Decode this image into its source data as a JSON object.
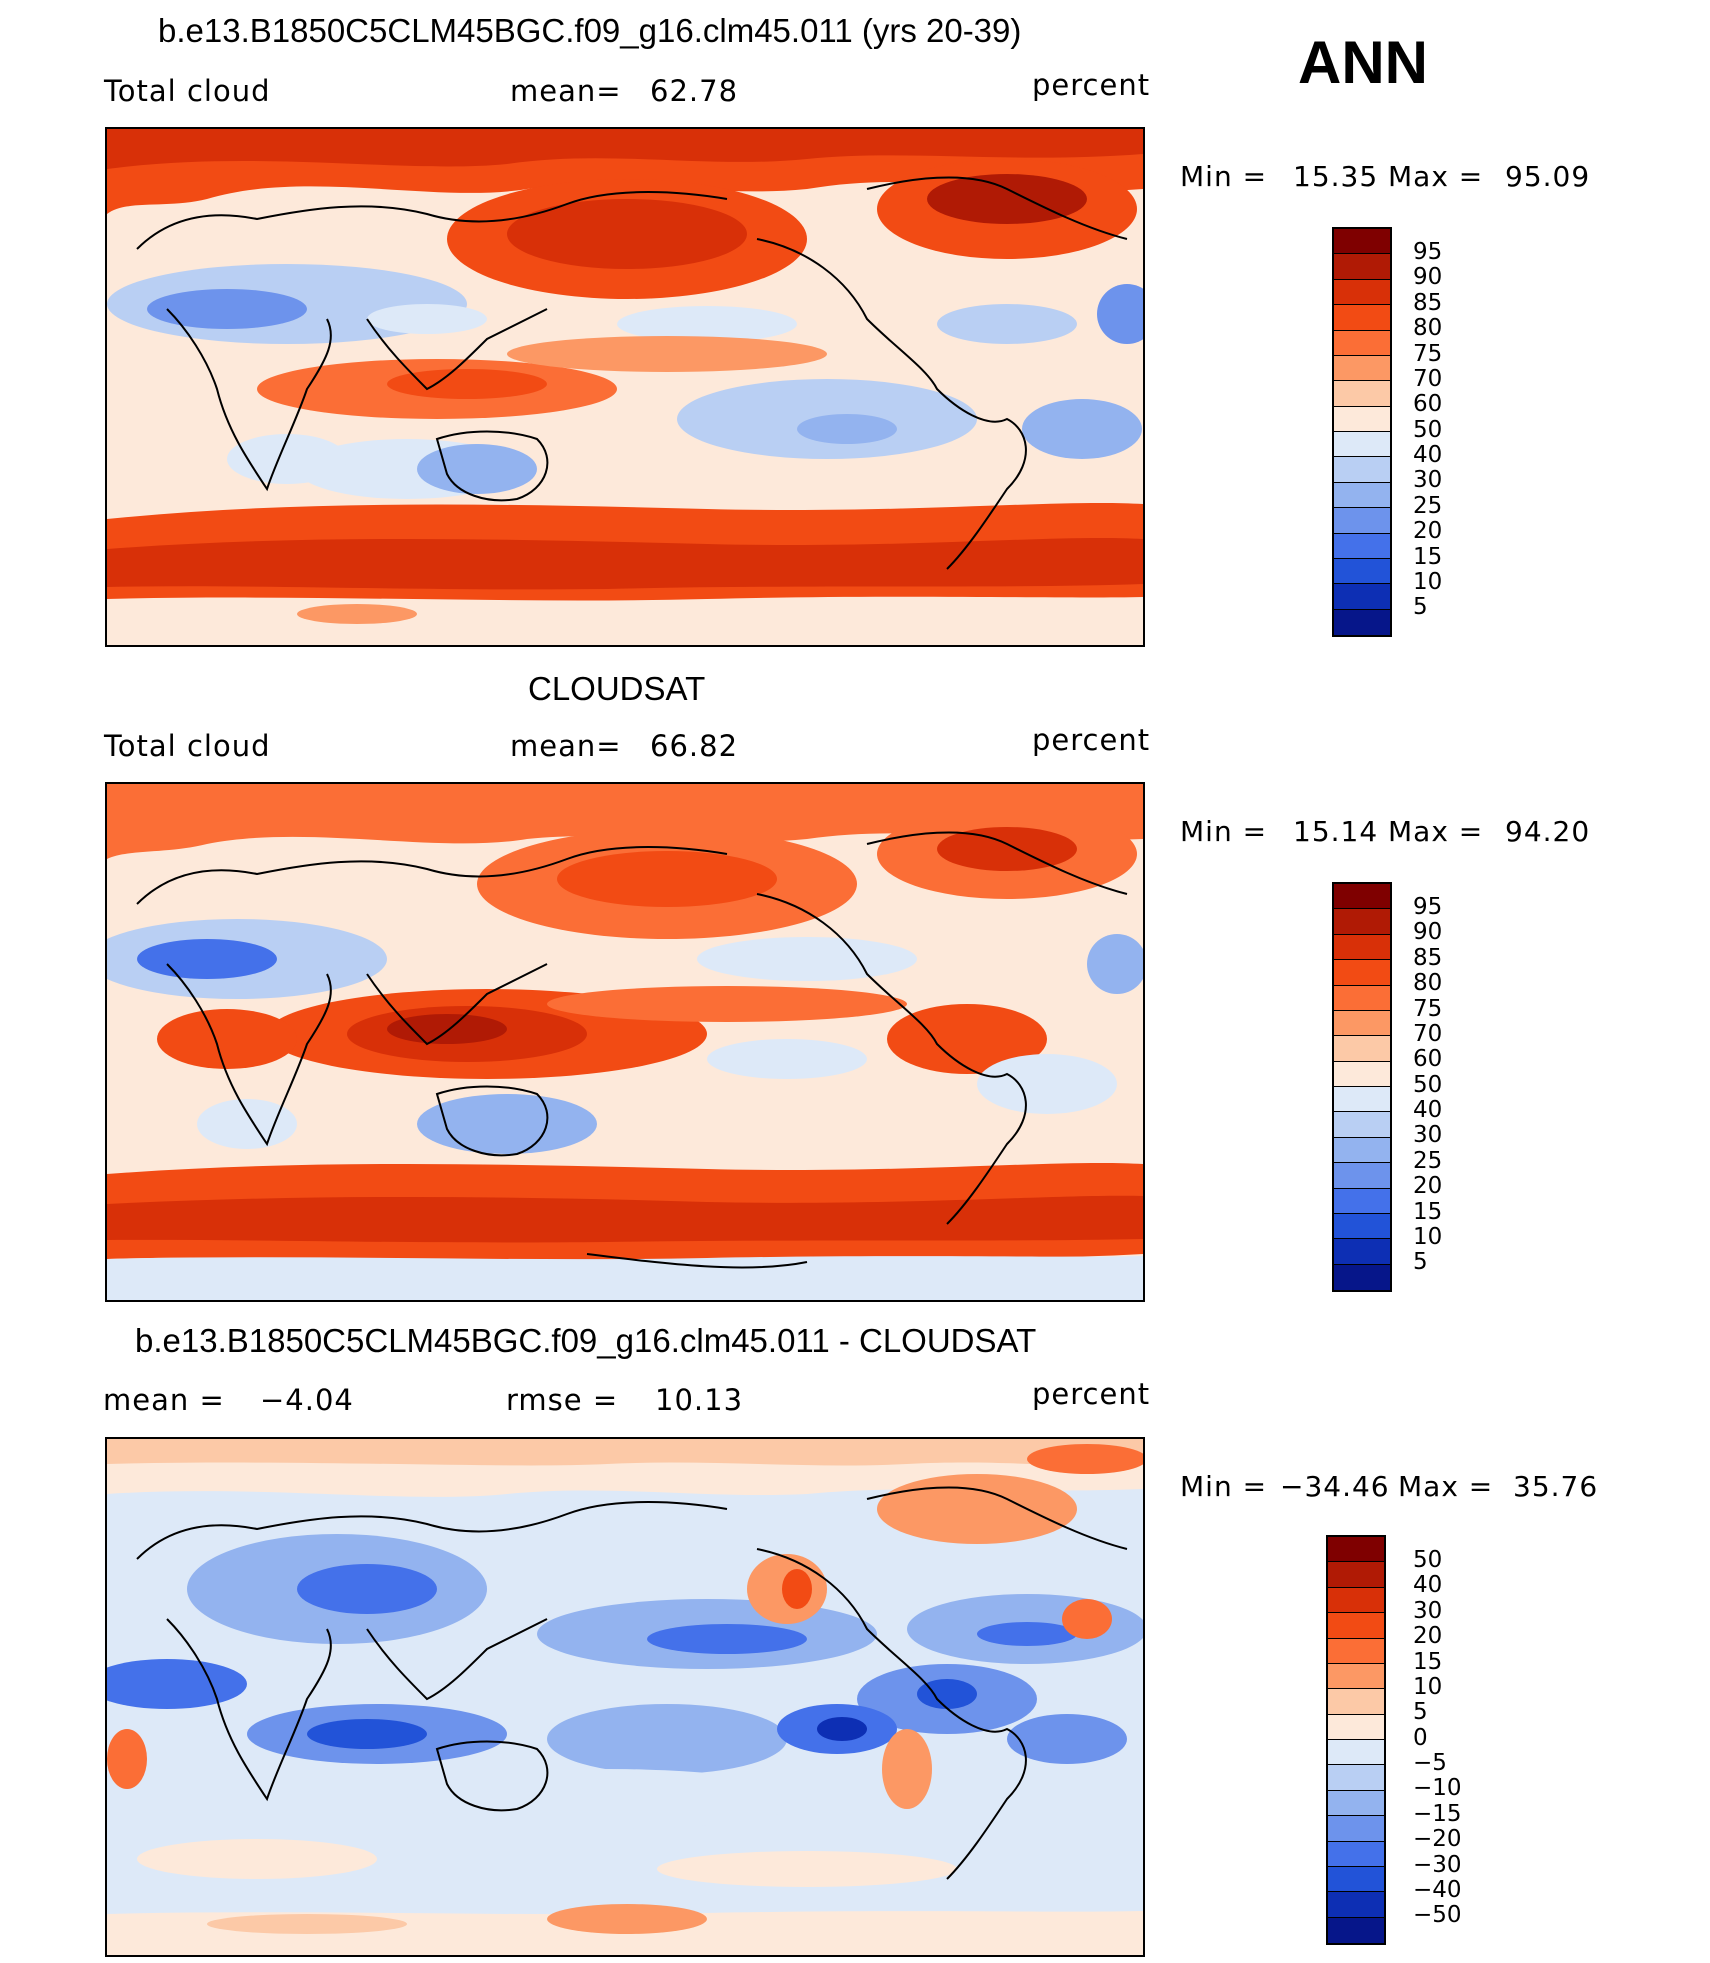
{
  "season": "ANN",
  "unit": "percent",
  "panels": [
    {
      "title": "b.e13.B1850C5CLM45BGC.f09_g16.clm45.011 (yrs 20-39)",
      "field": "Total cloud",
      "mean_label": "mean=",
      "mean": "62.78",
      "units": "percent",
      "min_label": "Min =",
      "min": "15.35",
      "max_label": "Max =",
      "max": "95.09",
      "legend_levels": [
        "95",
        "90",
        "85",
        "80",
        "75",
        "70",
        "60",
        "50",
        "40",
        "30",
        "25",
        "20",
        "15",
        "10",
        "5"
      ]
    },
    {
      "title": "CLOUDSAT",
      "field": "Total cloud",
      "mean_label": "mean=",
      "mean": "66.82",
      "units": "percent",
      "min_label": "Min =",
      "min": "15.14",
      "max_label": "Max =",
      "max": "94.20",
      "legend_levels": [
        "95",
        "90",
        "85",
        "80",
        "75",
        "70",
        "60",
        "50",
        "40",
        "30",
        "25",
        "20",
        "15",
        "10",
        "5"
      ]
    },
    {
      "title": "b.e13.B1850C5CLM45BGC.f09_g16.clm45.011 - CLOUDSAT",
      "mean_label": "mean =",
      "mean": "−4.04",
      "rmse_label": "rmse =",
      "rmse": "10.13",
      "units": "percent",
      "min_label": "Min =",
      "min": "−34.46",
      "max_label": "Max =",
      "max": "35.76",
      "legend_levels": [
        "50",
        "40",
        "30",
        "20",
        "15",
        "10",
        "5",
        "0",
        "−5",
        "−10",
        "−15",
        "−20",
        "−30",
        "−40",
        "−50"
      ]
    }
  ],
  "colors": {
    "abs_scale": [
      "#7f0000",
      "#b01a05",
      "#d83008",
      "#f24b14",
      "#fb6e36",
      "#fc9864",
      "#fcc9a7",
      "#fde9da",
      "#dde9f8",
      "#b9cff3",
      "#93b3ef",
      "#6d93ec",
      "#4471ea",
      "#2253d8",
      "#0d2fb4",
      "#06168a"
    ],
    "diff_scale": [
      "#7f0000",
      "#b01a05",
      "#d83008",
      "#f24b14",
      "#fb6e36",
      "#fc9864",
      "#fcc9a7",
      "#fde9da",
      "#dde9f8",
      "#b9cff3",
      "#93b3ef",
      "#6d93ec",
      "#4471ea",
      "#2253d8",
      "#0d2fb4",
      "#06168a"
    ]
  }
}
